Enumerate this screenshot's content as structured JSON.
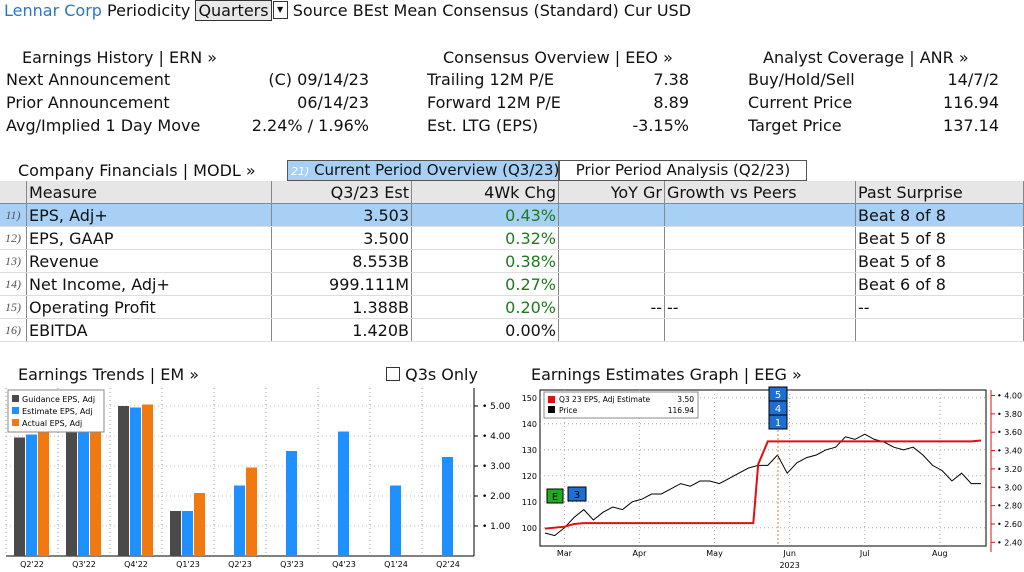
{
  "header": {
    "company": "Lennar Corp",
    "periodicity_label": "Periodicity",
    "periodicity_value": "Quarters",
    "source_text": "Source BEst Mean Consensus (Standard) Cur USD"
  },
  "earnings_history": {
    "title": "Earnings History | ERN »",
    "rows": [
      {
        "label": "Next Announcement",
        "value": "(C) 09/14/23"
      },
      {
        "label": "Prior Announcement",
        "value": "06/14/23"
      },
      {
        "label": "Avg/Implied 1 Day Move",
        "value": "2.24% / 1.96%"
      }
    ]
  },
  "consensus_overview": {
    "title": "Consensus Overview | EEO »",
    "rows": [
      {
        "label": "Trailing 12M P/E",
        "value": "7.38"
      },
      {
        "label": "Forward 12M P/E",
        "value": "8.89"
      },
      {
        "label": "Est. LTG (EPS)",
        "value": "-3.15%"
      }
    ]
  },
  "analyst_coverage": {
    "title": "Analyst Coverage | ANR »",
    "rows": [
      {
        "label": "Buy/Hold/Sell",
        "value": "14/7/2"
      },
      {
        "label": "Current Price",
        "value": "116.94"
      },
      {
        "label": "Target Price",
        "value": "137.14"
      }
    ]
  },
  "financials": {
    "title": "Company Financials | MODL »",
    "tab_active_num": "21)",
    "tab_active": "Current Period Overview (Q3/23)",
    "tab_inactive": "Prior Period Analysis (Q2/23)",
    "columns": [
      "Measure",
      "Q3/23 Est",
      "4Wk Chg",
      "YoY Gr",
      "Growth vs Peers",
      "Past Surprise"
    ],
    "rows": [
      {
        "num": "11)",
        "measure": "EPS, Adj+",
        "est": "3.503",
        "chg": "0.43%",
        "yoy": "",
        "peers": "",
        "surprise": "Beat 8 of 8"
      },
      {
        "num": "12)",
        "measure": "EPS, GAAP",
        "est": "3.500",
        "chg": "0.32%",
        "yoy": "",
        "peers": "",
        "surprise": "Beat 5 of 8"
      },
      {
        "num": "13)",
        "measure": "Revenue",
        "est": "8.553B",
        "chg": "0.38%",
        "yoy": "",
        "peers": "",
        "surprise": "Beat 5 of 8"
      },
      {
        "num": "14)",
        "measure": "Net Income, Adj+",
        "est": "999.111M",
        "chg": "0.27%",
        "yoy": "",
        "peers": "",
        "surprise": "Beat 6 of 8"
      },
      {
        "num": "15)",
        "measure": "Operating Profit",
        "est": "1.388B",
        "chg": "0.20%",
        "yoy": "--",
        "peers": "--",
        "surprise": "--"
      },
      {
        "num": "16)",
        "measure": "EBITDA",
        "est": "1.420B",
        "chg": "0.00%",
        "yoy": "",
        "peers": "",
        "surprise": ""
      }
    ]
  },
  "earnings_trends": {
    "title": "Earnings Trends | EM »",
    "checkbox_label": "Q3s Only"
  },
  "earnings_graph": {
    "title": "Earnings Estimates Graph | EEG »"
  },
  "colors": {
    "guidance": "#4a4a4a",
    "estimate": "#1e90ff",
    "actual": "#f07a10",
    "price": "#000000",
    "estimate_line": "#e01010",
    "selected_row": "#a8d0f5",
    "link_blue": "#2a77c9"
  },
  "chart_data": [
    {
      "type": "bar",
      "categories": [
        "Q2'22",
        "Q3'22",
        "Q4'22",
        "Q1'23",
        "Q2'23",
        "Q3'23",
        "Q4'23",
        "Q1'24",
        "Q2'24"
      ],
      "series": [
        {
          "name": "Guidance EPS, Adj",
          "values": [
            3.95,
            4.4,
            5.0,
            1.5,
            null,
            null,
            null,
            null,
            null
          ]
        },
        {
          "name": "Estimate EPS, Adj",
          "values": [
            4.05,
            4.55,
            4.95,
            1.5,
            2.35,
            3.5,
            4.15,
            2.35,
            3.3
          ]
        },
        {
          "name": "Actual EPS, Adj",
          "values": [
            4.5,
            4.65,
            5.05,
            2.1,
            2.95,
            null,
            null,
            null,
            null
          ]
        }
      ],
      "yticks": [
        "1.00",
        "2.00",
        "3.00",
        "4.00",
        "5.00"
      ],
      "ylim": [
        0,
        5.6
      ],
      "legend": "top-left"
    },
    {
      "type": "line",
      "x_labels": [
        "Mar",
        "Apr",
        "May",
        "Jun",
        "Jul",
        "Aug"
      ],
      "x_year": "2023",
      "left_yticks": [
        "100",
        "110",
        "120",
        "130",
        "140",
        "150"
      ],
      "right_yticks": [
        "2.40",
        "2.60",
        "2.80",
        "3.00",
        "3.20",
        "3.40",
        "3.60",
        "3.80",
        "4.00"
      ],
      "left_ylim": [
        93,
        153
      ],
      "right_ylim": [
        2.36,
        4.06
      ],
      "legend": "top-left",
      "legend_entries": [
        {
          "name": "Q3 23 EPS, Adj Estimate",
          "value": "3.50"
        },
        {
          "name": "Price",
          "value": "116.94"
        }
      ],
      "event_markers": [
        {
          "label": "E",
          "color": "#22aa22"
        },
        {
          "label": "3",
          "color": "#1e6fd0"
        },
        {
          "label": "5",
          "color": "#1e6fd0"
        },
        {
          "label": "4",
          "color": "#1e6fd0"
        },
        {
          "label": "1",
          "color": "#1e6fd0"
        }
      ],
      "series": [
        {
          "name": "Price",
          "axis": "left",
          "x": [
            0,
            4,
            8,
            12,
            16,
            20,
            24,
            28,
            32,
            36,
            40,
            44,
            48,
            52,
            56,
            60,
            64,
            68,
            72,
            76,
            80,
            84,
            88,
            92,
            96,
            100,
            104,
            108,
            112,
            116,
            120,
            124,
            128,
            132,
            136,
            140,
            144,
            148,
            152,
            156,
            160,
            164,
            168,
            172,
            176,
            180
          ],
          "y": [
            98,
            97,
            100,
            104,
            107,
            103,
            106,
            108,
            107,
            110,
            111,
            113,
            113,
            115,
            117,
            116,
            118,
            118,
            117,
            119,
            121,
            123,
            124,
            124,
            128,
            121,
            125,
            127,
            128,
            130,
            131,
            135,
            134,
            136,
            134,
            133,
            131,
            130,
            131,
            128,
            124,
            122,
            118,
            121,
            117,
            117
          ]
        },
        {
          "name": "Q3 23 EPS, Adj Estimate",
          "axis": "right",
          "x": [
            0,
            8,
            12,
            16,
            20,
            24,
            28,
            32,
            36,
            40,
            44,
            48,
            52,
            56,
            60,
            64,
            68,
            72,
            76,
            80,
            84,
            86,
            88,
            92,
            100,
            110,
            120,
            130,
            140,
            150,
            160,
            170,
            176,
            180
          ],
          "y": [
            2.55,
            2.57,
            2.6,
            2.61,
            2.61,
            2.61,
            2.61,
            2.61,
            2.61,
            2.61,
            2.61,
            2.61,
            2.61,
            2.61,
            2.61,
            2.61,
            2.61,
            2.61,
            2.61,
            2.61,
            2.61,
            2.61,
            3.25,
            3.5,
            3.5,
            3.5,
            3.5,
            3.5,
            3.5,
            3.5,
            3.5,
            3.5,
            3.5,
            3.51
          ]
        }
      ]
    }
  ]
}
